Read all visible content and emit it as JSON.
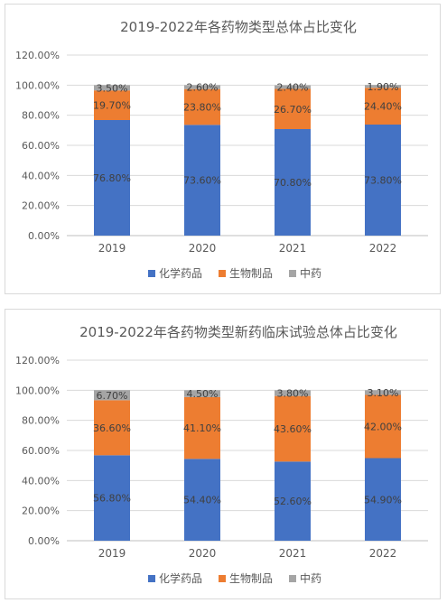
{
  "chart_data": [
    {
      "type": "bar",
      "stacked": true,
      "title": "2019-2022年各药物类型总体占比变化",
      "categories": [
        "2019",
        "2020",
        "2021",
        "2022"
      ],
      "y_ticks": [
        "0.00%",
        "20.00%",
        "40.00%",
        "60.00%",
        "80.00%",
        "100.00%",
        "120.00%"
      ],
      "ylim": [
        0,
        120
      ],
      "grid": true,
      "legend_position": "bottom",
      "series": [
        {
          "name": "化学药品",
          "values": [
            76.8,
            73.6,
            70.8,
            73.8
          ],
          "labels": [
            "76.80%",
            "73.60%",
            "70.80%",
            "73.80%"
          ],
          "color": "#4472c4"
        },
        {
          "name": "生物制品",
          "values": [
            19.7,
            23.8,
            26.7,
            24.4
          ],
          "labels": [
            "19.70%",
            "23.80%",
            "26.70%",
            "24.40%"
          ],
          "color": "#ed7d31"
        },
        {
          "name": "中药",
          "values": [
            3.5,
            2.6,
            2.4,
            1.9
          ],
          "labels": [
            "3.50%",
            "2.60%",
            "2.40%",
            "1.90%"
          ],
          "color": "#a5a5a5"
        }
      ]
    },
    {
      "type": "bar",
      "stacked": true,
      "title": "2019-2022年各药物类型新药临床试验总体占比变化",
      "categories": [
        "2019",
        "2020",
        "2021",
        "2022"
      ],
      "y_ticks": [
        "0.00%",
        "20.00%",
        "40.00%",
        "60.00%",
        "80.00%",
        "100.00%",
        "120.00%"
      ],
      "ylim": [
        0,
        120
      ],
      "grid": true,
      "legend_position": "bottom",
      "series": [
        {
          "name": "化学药品",
          "values": [
            56.8,
            54.4,
            52.6,
            54.9
          ],
          "labels": [
            "56.80%",
            "54.40%",
            "52.60%",
            "54.90%"
          ],
          "color": "#4472c4"
        },
        {
          "name": "生物制品",
          "values": [
            36.6,
            41.1,
            43.6,
            42.0
          ],
          "labels": [
            "36.60%",
            "41.10%",
            "43.60%",
            "42.00%"
          ],
          "color": "#ed7d31"
        },
        {
          "name": "中药",
          "values": [
            6.7,
            4.5,
            3.8,
            3.1
          ],
          "labels": [
            "6.70%",
            "4.50%",
            "3.80%",
            "3.10%"
          ],
          "color": "#a5a5a5"
        }
      ]
    }
  ]
}
